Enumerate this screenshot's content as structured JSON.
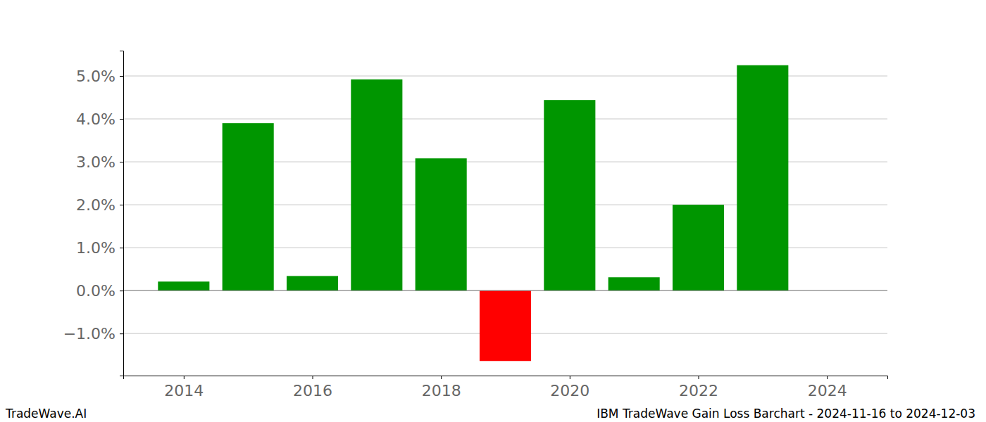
{
  "chart_data": {
    "type": "bar",
    "title": "IBM TradeWave Gain Loss Barchart - 2024-11-16 to 2024-12-03",
    "annotations": [
      "TradeWave.AI"
    ],
    "x": [
      2014,
      2015,
      2016,
      2017,
      2018,
      2019,
      2020,
      2021,
      2022,
      2023,
      2024
    ],
    "values": [
      0.21,
      3.9,
      0.34,
      4.92,
      3.08,
      -1.64,
      4.44,
      0.31,
      2.0,
      5.25,
      0
    ],
    "colors": [
      "#009600",
      "#009600",
      "#009600",
      "#009600",
      "#009600",
      "#ff0000",
      "#009600",
      "#009600",
      "#009600",
      "#009600",
      "#009600"
    ],
    "xlim": [
      2013.06,
      2024.94
    ],
    "xticks": [
      2014,
      2016,
      2018,
      2020,
      2022,
      2024
    ],
    "ylim": [
      -1.98,
      5.59
    ],
    "yticks": [
      {
        "value": -1,
        "label": "−1.0%"
      },
      {
        "value": 0,
        "label": "0.0%"
      },
      {
        "value": 1,
        "label": "1.0%"
      },
      {
        "value": 2,
        "label": "2.0%"
      },
      {
        "value": 3,
        "label": "3.0%"
      },
      {
        "value": 4,
        "label": "4.0%"
      },
      {
        "value": 5,
        "label": "5.0%"
      }
    ],
    "grid": true
  }
}
